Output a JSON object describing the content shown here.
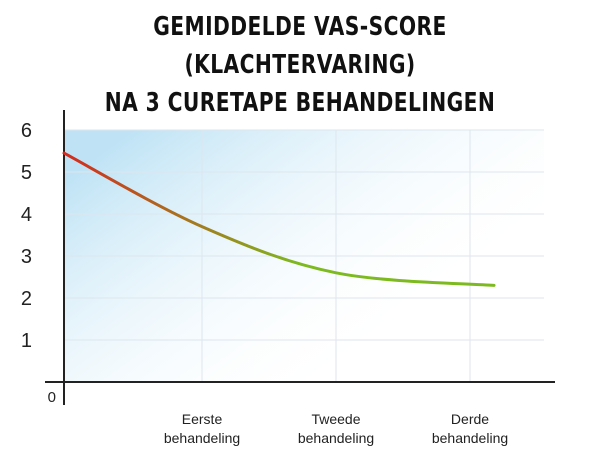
{
  "title_line1": "GEMIDDELDE VAS-SCORE (KLACHTERVARING)",
  "title_line2": "NA 3 CURETAPE BEHANDELINGEN",
  "chart_data": {
    "type": "line",
    "title": "GEMIDDELDE VAS-SCORE (KLACHTERVARING) NA 3 CURETAPE BEHANDELINGEN",
    "xlabel": "",
    "ylabel": "",
    "ylim": [
      0,
      6
    ],
    "yticks": [
      "0",
      "1",
      "2",
      "3",
      "4",
      "5",
      "6"
    ],
    "categories": [
      {
        "line1": "",
        "line2": ""
      },
      {
        "line1": "Eerste",
        "line2": "behandeling"
      },
      {
        "line1": "Tweede",
        "line2": "behandeling"
      },
      {
        "line1": "Derde",
        "line2": "behandeling"
      }
    ],
    "values": [
      5.45,
      3.7,
      2.6,
      2.3
    ],
    "line_color_start": "#d42a1e",
    "line_color_end": "#7dba1f",
    "background_gradient": [
      "#bfe3f5",
      "#ffffff"
    ],
    "grid": true
  }
}
